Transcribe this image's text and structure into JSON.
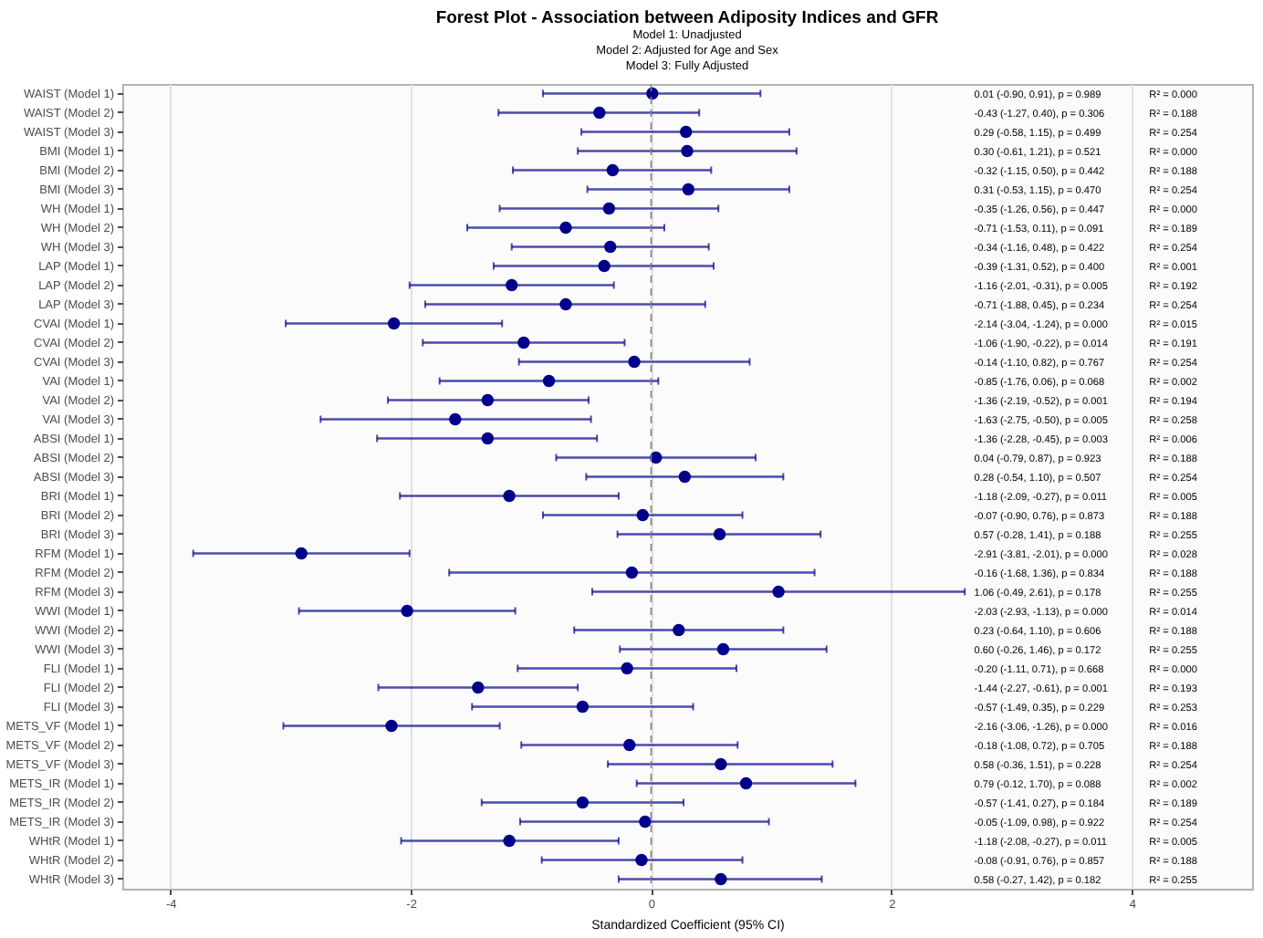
{
  "chart_data": {
    "type": "scatter",
    "orientation": "horizontal",
    "title": "Forest Plot - Association between Adiposity Indices and GFR",
    "subtitle": "Model 1: Unadjusted\nModel 2: Adjusted for Age and Sex\nModel 3: Fully Adjusted",
    "xlabel": "Standardized Coefficient (95% CI)",
    "categories": [
      "WAIST (Model 1)",
      "WAIST (Model 2)",
      "WAIST (Model 3)",
      "BMI (Model 1)",
      "BMI (Model 2)",
      "BMI (Model 3)",
      "WH (Model 1)",
      "WH (Model 2)",
      "WH (Model 3)",
      "LAP (Model 1)",
      "LAP (Model 2)",
      "LAP (Model 3)",
      "CVAI (Model 1)",
      "CVAI (Model 2)",
      "CVAI (Model 3)",
      "VAI (Model 1)",
      "VAI (Model 2)",
      "VAI (Model 3)",
      "ABSI (Model 1)",
      "ABSI (Model 2)",
      "ABSI (Model 3)",
      "BRI (Model 1)",
      "BRI (Model 2)",
      "BRI (Model 3)",
      "RFM (Model 1)",
      "RFM (Model 2)",
      "RFM (Model 3)",
      "WWI (Model 1)",
      "WWI (Model 2)",
      "WWI (Model 3)",
      "FLI (Model 1)",
      "FLI (Model 2)",
      "FLI (Model 3)",
      "METS_VF (Model 1)",
      "METS_VF (Model 2)",
      "METS_VF (Model 3)",
      "METS_IR (Model 1)",
      "METS_IR (Model 2)",
      "METS_IR (Model 3)",
      "WHtR (Model 1)",
      "WHtR (Model 2)",
      "WHtR (Model 3)"
    ],
    "series": [
      {
        "color": "#00008b",
        "values": [
          0.01,
          -0.43,
          0.29,
          0.3,
          -0.32,
          0.31,
          -0.35,
          -0.71,
          -0.34,
          -0.39,
          -1.16,
          -0.71,
          -2.14,
          -1.06,
          -0.14,
          -0.85,
          -1.36,
          -1.63,
          -1.36,
          0.04,
          0.28,
          -1.18,
          -0.07,
          0.57,
          -2.91,
          -0.16,
          1.06,
          -2.03,
          0.23,
          0.6,
          -0.2,
          -1.44,
          -0.57,
          -2.16,
          -0.18,
          0.58,
          0.79,
          -0.57,
          -0.05,
          -1.18,
          -0.08,
          0.58
        ],
        "errors": [
          [
            -0.9,
            0.91
          ],
          [
            -1.27,
            0.4
          ],
          [
            -0.58,
            1.15
          ],
          [
            -0.61,
            1.21
          ],
          [
            -1.15,
            0.5
          ],
          [
            -0.53,
            1.15
          ],
          [
            -1.26,
            0.56
          ],
          [
            -1.53,
            0.11
          ],
          [
            -1.16,
            0.48
          ],
          [
            -1.31,
            0.52
          ],
          [
            -2.01,
            -0.31
          ],
          [
            -1.88,
            0.45
          ],
          [
            -3.04,
            -1.24
          ],
          [
            -1.9,
            -0.22
          ],
          [
            -1.1,
            0.82
          ],
          [
            -1.76,
            0.06
          ],
          [
            -2.19,
            -0.52
          ],
          [
            -2.75,
            -0.5
          ],
          [
            -2.28,
            -0.45
          ],
          [
            -0.79,
            0.87
          ],
          [
            -0.54,
            1.1
          ],
          [
            -2.09,
            -0.27
          ],
          [
            -0.9,
            0.76
          ],
          [
            -0.28,
            1.41
          ],
          [
            -3.81,
            -2.01
          ],
          [
            -1.68,
            1.36
          ],
          [
            -0.49,
            2.61
          ],
          [
            -2.93,
            -1.13
          ],
          [
            -0.64,
            1.1
          ],
          [
            -0.26,
            1.46
          ],
          [
            -1.11,
            0.71
          ],
          [
            -2.27,
            -0.61
          ],
          [
            -1.49,
            0.35
          ],
          [
            -3.06,
            -1.26
          ],
          [
            -1.08,
            0.72
          ],
          [
            -0.36,
            1.51
          ],
          [
            -0.12,
            1.7
          ],
          [
            -1.41,
            0.27
          ],
          [
            -1.09,
            0.98
          ],
          [
            -2.08,
            -0.27
          ],
          [
            -0.91,
            0.76
          ],
          [
            -0.27,
            1.42
          ]
        ]
      }
    ],
    "xlim": [
      -4.4,
      5.0
    ],
    "xticks": [
      -4,
      -2,
      0,
      2,
      4
    ],
    "grid": "x",
    "marker": "circle",
    "ref_lines": [
      {
        "axis": "x",
        "value": 0,
        "color": "#808080",
        "line_style": "dashed"
      }
    ],
    "annotations": [
      "0.01 (-0.90, 0.91), p = 0.989",
      "R² = 0.000",
      "-0.43 (-1.27, 0.40), p = 0.306",
      "R² = 0.188",
      "0.29 (-0.58, 1.15), p = 0.499",
      "R² = 0.254",
      "0.30 (-0.61, 1.21), p = 0.521",
      "R² = 0.000",
      "-0.32 (-1.15, 0.50), p = 0.442",
      "R² = 0.188",
      "0.31 (-0.53, 1.15), p = 0.470",
      "R² = 0.254",
      "-0.35 (-1.26, 0.56), p = 0.447",
      "R² = 0.000",
      "-0.71 (-1.53, 0.11), p = 0.091",
      "R² = 0.189",
      "-0.34 (-1.16, 0.48), p = 0.422",
      "R² = 0.254",
      "-0.39 (-1.31, 0.52), p = 0.400",
      "R² = 0.001",
      "-1.16 (-2.01, -0.31), p = 0.005",
      "R² = 0.192",
      "-0.71 (-1.88, 0.45), p = 0.234",
      "R² = 0.254",
      "-2.14 (-3.04, -1.24), p = 0.000",
      "R² = 0.015",
      "-1.06 (-1.90, -0.22), p = 0.014",
      "R² = 0.191",
      "-0.14 (-1.10, 0.82), p = 0.767",
      "R² = 0.254",
      "-0.85 (-1.76, 0.06), p = 0.068",
      "R² = 0.002",
      "-1.36 (-2.19, -0.52), p = 0.001",
      "R² = 0.194",
      "-1.63 (-2.75, -0.50), p = 0.005",
      "R² = 0.258",
      "-1.36 (-2.28, -0.45), p = 0.003",
      "R² = 0.006",
      "0.04 (-0.79, 0.87), p = 0.923",
      "R² = 0.188",
      "0.28 (-0.54, 1.10), p = 0.507",
      "R² = 0.254",
      "-1.18 (-2.09, -0.27), p = 0.011",
      "R² = 0.005",
      "-0.07 (-0.90, 0.76), p = 0.873",
      "R² = 0.188",
      "0.57 (-0.28, 1.41), p = 0.188",
      "R² = 0.255",
      "-2.91 (-3.81, -2.01), p = 0.000",
      "R² = 0.028",
      "-0.16 (-1.68, 1.36), p = 0.834",
      "R² = 0.188",
      "1.06 (-0.49, 2.61), p = 0.178",
      "R² = 0.255",
      "-2.03 (-2.93, -1.13), p = 0.000",
      "R² = 0.014",
      "0.23 (-0.64, 1.10), p = 0.606",
      "R² = 0.188",
      "0.60 (-0.26, 1.46), p = 0.172",
      "R² = 0.255",
      "-0.20 (-1.11, 0.71), p = 0.668",
      "R² = 0.000",
      "-1.44 (-2.27, -0.61), p = 0.001",
      "R² = 0.193",
      "-0.57 (-1.49, 0.35), p = 0.229",
      "R² = 0.253",
      "-2.16 (-3.06, -1.26), p = 0.000",
      "R² = 0.016",
      "-0.18 (-1.08, 0.72), p = 0.705",
      "R² = 0.188",
      "0.58 (-0.36, 1.51), p = 0.228",
      "R² = 0.254",
      "0.79 (-0.12, 1.70), p = 0.088",
      "R² = 0.002",
      "-0.57 (-1.41, 0.27), p = 0.184",
      "R² = 0.189",
      "-0.05 (-1.09, 0.98), p = 0.922",
      "R² = 0.254",
      "-1.18 (-2.08, -0.27), p = 0.011",
      "R² = 0.005",
      "-0.08 (-0.91, 0.76), p = 0.857",
      "R² = 0.188",
      "0.58 (-0.27, 1.42), p = 0.182",
      "R² = 0.255"
    ]
  }
}
